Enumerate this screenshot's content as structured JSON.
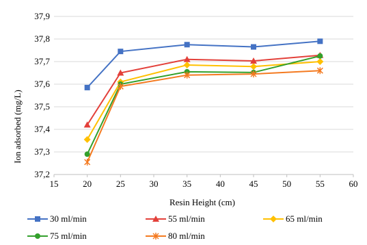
{
  "chart_data": {
    "type": "line",
    "title": "",
    "xlabel": "Resin Height (cm)",
    "ylabel": "Ion adsorbed (mg/L)",
    "xlim": [
      15,
      60
    ],
    "ylim": [
      37.2,
      37.9
    ],
    "xticks": [
      15,
      20,
      25,
      30,
      35,
      40,
      45,
      50,
      55,
      60
    ],
    "yticks": [
      37.2,
      37.3,
      37.4,
      37.5,
      37.6,
      37.7,
      37.8,
      37.9
    ],
    "xtick_labels": [
      "15",
      "20",
      "25",
      "30",
      "35",
      "40",
      "45",
      "50",
      "55",
      "60"
    ],
    "ytick_labels": [
      "37,2",
      "37,3",
      "37,4",
      "37,5",
      "37,6",
      "37,7",
      "37,8",
      "37,9"
    ],
    "grid": "horizontal",
    "legend_position": "bottom",
    "x": [
      20,
      25,
      35,
      45,
      55
    ],
    "series": [
      {
        "name": "30 ml/min",
        "values": [
          37.585,
          37.745,
          37.775,
          37.765,
          37.79
        ],
        "color": "#4472C4",
        "marker": "square"
      },
      {
        "name": "55 ml/min",
        "values": [
          37.42,
          37.65,
          37.71,
          37.703,
          37.728
        ],
        "color": "#E3403A",
        "marker": "triangle"
      },
      {
        "name": "65 ml/min",
        "values": [
          37.355,
          37.61,
          37.685,
          37.678,
          37.7
        ],
        "color": "#FFC000",
        "marker": "diamond"
      },
      {
        "name": "75 ml/min",
        "values": [
          37.29,
          37.6,
          37.655,
          37.652,
          37.725
        ],
        "color": "#33A02C",
        "marker": "circle"
      },
      {
        "name": "80 ml/min",
        "values": [
          37.255,
          37.59,
          37.64,
          37.645,
          37.66
        ],
        "color": "#F47A20",
        "marker": "star"
      }
    ]
  }
}
